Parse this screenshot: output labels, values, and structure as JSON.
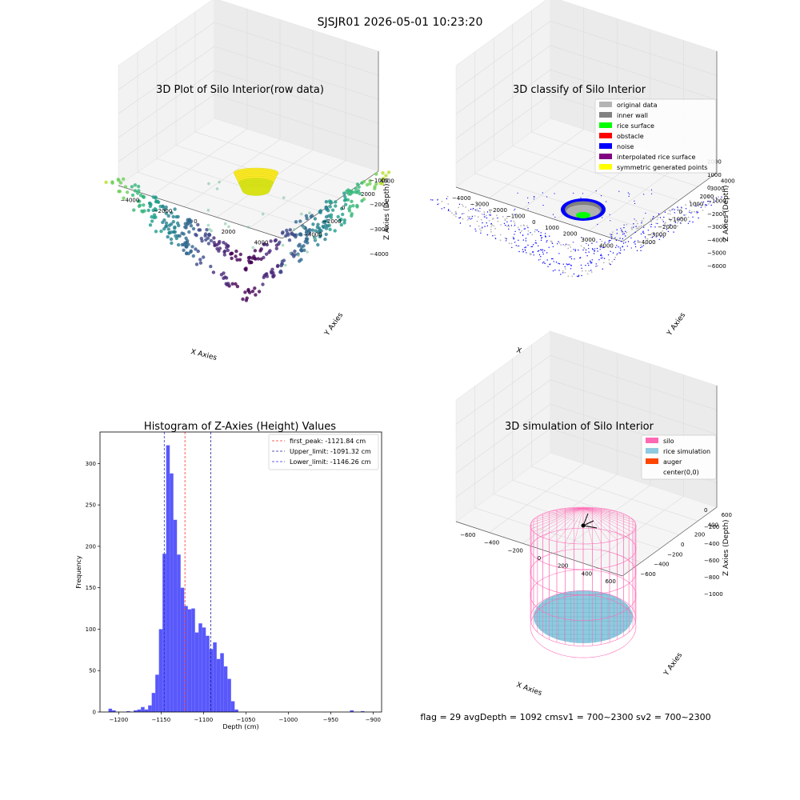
{
  "figure": {
    "suptitle": "SJSJR01 2026-05-01 10:23:20",
    "status_text": "flag = 29  avgDepth = 1092 cmsv1 = 700~2300  sv2 = 700~2300"
  },
  "colors": {
    "hist_bar": "#4f4ffb",
    "first_peak": "#ff3030",
    "upper_limit": "#2020a0",
    "lower_limit": "#2d2dd6",
    "silo": "#ff69b4",
    "rice": "#8fcbe0",
    "auger": "#ff4500",
    "original": "#b4b4b4",
    "inner_wall": "#808080",
    "rice_surface": "#00ff00",
    "obstacle": "#ff0000",
    "noise": "#0000ff",
    "interpolated": "#800080",
    "symmetric": "#ffff00"
  },
  "chart_data": [
    {
      "type": "scatter",
      "projection": "3d",
      "title": "3D Plot of Silo Interior(row data)",
      "xlabel": "X Axies",
      "ylabel": "Y Axies",
      "zlabel": "Z Axies (Depth)",
      "xticks": [
        "−4000",
        "−2000",
        "0",
        "2000",
        "4000"
      ],
      "yticks": [
        "−4000",
        "−2000",
        "0",
        "2000",
        "4000"
      ],
      "zticks": [
        "−4000",
        "−3000",
        "−2000",
        "−1000"
      ],
      "colormap": "viridis",
      "grid": true
    },
    {
      "type": "scatter",
      "projection": "3d",
      "title": "3D classify of Silo Interior",
      "xlabel": "X Axies",
      "ylabel": "Y Axies",
      "zlabel": "Z Axies (Depth)",
      "xticks": [
        "−4000",
        "−3000",
        "−2000",
        "−1000",
        "0",
        "1000",
        "2000",
        "3000",
        "4000"
      ],
      "yticks": [
        "−4000",
        "−3000",
        "−2000",
        "−1000",
        "0",
        "1000",
        "2000",
        "3000",
        "4000"
      ],
      "zticks": [
        "−6000",
        "−5000",
        "−4000",
        "−3000",
        "−2000",
        "−1000",
        "0",
        "1000",
        "2000"
      ],
      "legend_position": "top-right",
      "legend": [
        "original data",
        "inner wall",
        "rice surface",
        "obstacle",
        "noise",
        "interpolated rice surface",
        "symmetric generated points"
      ],
      "grid": true
    },
    {
      "type": "bar",
      "title": "Histogram of Z-Axies (Height) Values",
      "xlabel": "Depth (cm)",
      "ylabel": "Frequency",
      "xlim": [
        -1222,
        -890
      ],
      "ylim": [
        0,
        338
      ],
      "xticks": [
        -1200,
        -1150,
        -1100,
        -1050,
        -1000,
        -950,
        -900
      ],
      "xtick_labels": [
        "−1200",
        "−1150",
        "−1100",
        "−1050",
        "−1000",
        "−950",
        "−900"
      ],
      "yticks": [
        0,
        50,
        100,
        150,
        200,
        250,
        300
      ],
      "bin_start": -1212,
      "bin_width": 4.25,
      "values": [
        4,
        2,
        0,
        0,
        0,
        1,
        0,
        2,
        3,
        6,
        3,
        8,
        23,
        45,
        100,
        191,
        322,
        288,
        232,
        190,
        150,
        128,
        124,
        125,
        96,
        107,
        102,
        92,
        76,
        84,
        64,
        71,
        55,
        40,
        13,
        3,
        0,
        0,
        0,
        0,
        0,
        0,
        0,
        0,
        0,
        0,
        0,
        0,
        0,
        0,
        0,
        0,
        0,
        0,
        0,
        0,
        0,
        0,
        0,
        0,
        0,
        0,
        0,
        0,
        0,
        0,
        0,
        2,
        0,
        0,
        1
      ],
      "legend_position": "top-right",
      "lines": [
        {
          "label": "first_peak: -1121.84 cm",
          "x": -1121.84,
          "color_key": "first_peak"
        },
        {
          "label": "Upper_limit: -1091.32 cm",
          "x": -1091.32,
          "color_key": "upper_limit"
        },
        {
          "label": "Lower_limit: -1146.26 cm",
          "x": -1146.26,
          "color_key": "lower_limit"
        }
      ]
    },
    {
      "type": "surface",
      "projection": "3d",
      "title": "3D simulation of Silo Interior",
      "xlabel": "X Axies",
      "ylabel": "Y Axies",
      "zlabel": "Z Axies (Depth)",
      "xticks": [
        "−600",
        "−400",
        "−200",
        "0",
        "200",
        "400",
        "600"
      ],
      "yticks": [
        "−600",
        "−400",
        "−200",
        "0",
        "200",
        "400",
        "600"
      ],
      "zticks": [
        "−1000",
        "−800",
        "−600",
        "−400",
        "−200",
        "0"
      ],
      "legend_position": "top-right",
      "legend": [
        {
          "label": "silo",
          "color_key": "silo"
        },
        {
          "label": "rice simulation",
          "color_key": "rice"
        },
        {
          "label": "auger",
          "color_key": "auger"
        },
        {
          "label": "center(0,0)",
          "color_key": ""
        }
      ],
      "grid": true
    }
  ]
}
